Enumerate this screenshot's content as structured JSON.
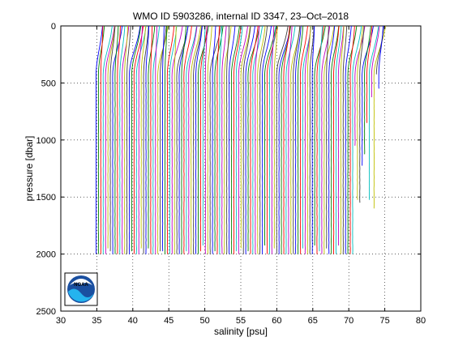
{
  "chart_data": {
    "type": "line",
    "title": "WMO ID 5903286, internal ID 3347, 23–Oct–2018",
    "xlabel": "salinity [psu]",
    "ylabel": "pressure [dbar]",
    "xlim": [
      30,
      80
    ],
    "ylim": [
      0,
      2500
    ],
    "y_reversed": true,
    "grid": "dotted",
    "xticks": [
      "30",
      "35",
      "40",
      "45",
      "50",
      "55",
      "60",
      "65",
      "70",
      "75",
      "80"
    ],
    "yticks": [
      "0",
      "500",
      "1000",
      "1500",
      "2000",
      "2500"
    ],
    "profiles": {
      "description_note": "",
      "count": 120,
      "start_deep_salinity": 34.9,
      "offset_step": 0.33,
      "max_pressure": 2000,
      "surface_excess": [
        0.2,
        1.6
      ],
      "pycnocline_pressure": 500
    },
    "colors": [
      "#0000ff",
      "#008000",
      "#ff0000",
      "#00bfbf",
      "#bf00bf",
      "#bfbf00",
      "#404040"
    ],
    "logo": "noaa-logo"
  }
}
